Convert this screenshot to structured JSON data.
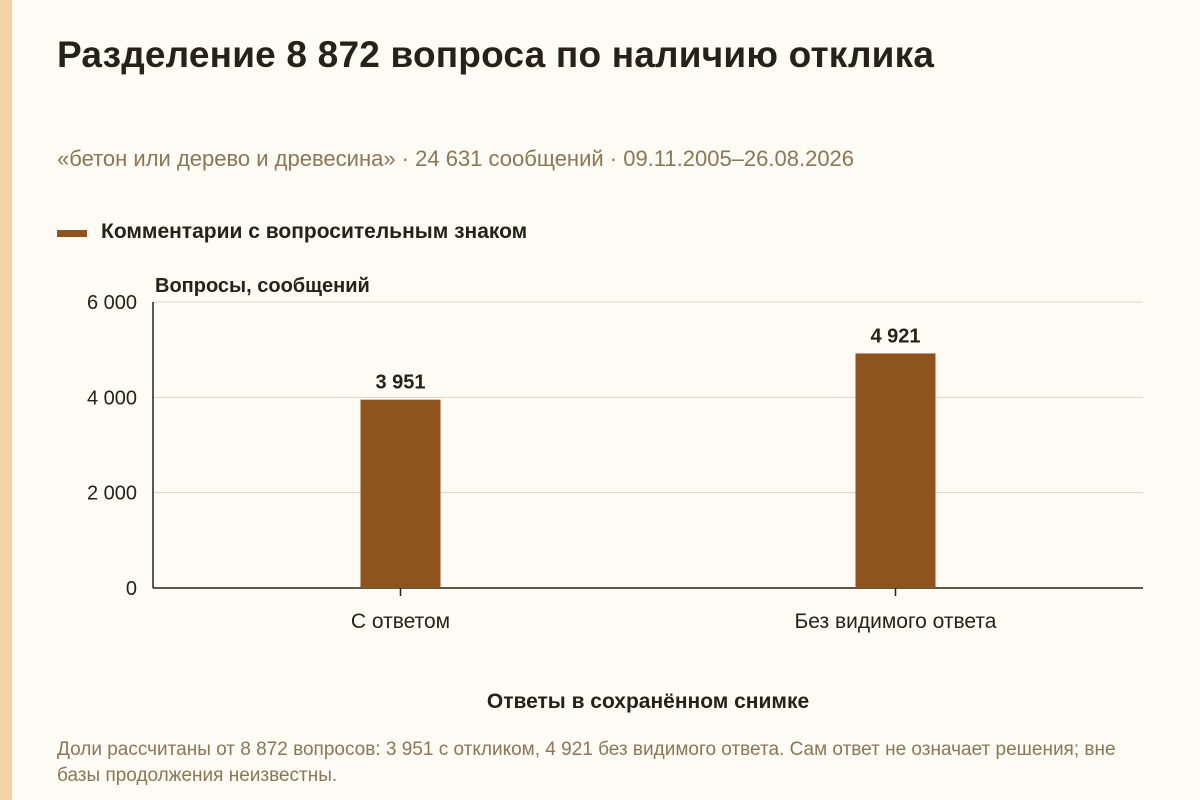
{
  "title": "Разделение 8 872 вопроса по наличию отклика",
  "subtitle": "«бетон или дерево и древесина» · 24 631 сообщений · 09.11.2005–26.08.2026",
  "note": "Доли рассчитаны от 8 872 вопросов: 3 951 с откликом, 4 921 без видимого ответа. Сам ответ не означает решения; вне базы продолжения неизвестны.",
  "colors": {
    "bar": "#8f531e",
    "background": "#fdfbf3",
    "accent_stripe": "#f4d2a4",
    "text": "#262217",
    "muted_text": "#8b7655",
    "grid": "#dcd6c6"
  },
  "chart_data": {
    "type": "bar",
    "categories": [
      "С ответом",
      "Без видимого ответа"
    ],
    "series": [
      {
        "name": "Комментарии с вопросительным знаком",
        "values": [
          3951,
          4921
        ]
      }
    ],
    "value_labels": [
      "3 951",
      "4 921"
    ],
    "xlabel": "Ответы в сохранённом снимке",
    "ylabel": "Вопросы, сообщений",
    "ylim": [
      0,
      6000
    ],
    "yticks": [
      0,
      2000,
      4000,
      6000
    ],
    "ytick_labels": [
      "0",
      "2 000",
      "4 000",
      "6 000"
    ],
    "grid": true,
    "legend_position": "top-left"
  }
}
